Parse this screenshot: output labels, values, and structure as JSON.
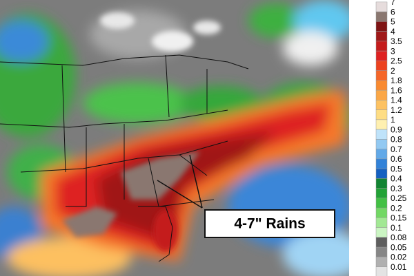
{
  "annotation": "4-7\" Rains",
  "legend": {
    "items": [
      {
        "label": "7",
        "color": "#e6dcdc"
      },
      {
        "label": "6",
        "color": "#8a7770"
      },
      {
        "label": "5",
        "color": "#7e1414"
      },
      {
        "label": "4",
        "color": "#a01818"
      },
      {
        "label": "3.5",
        "color": "#c41c1c"
      },
      {
        "label": "3",
        "color": "#de2222"
      },
      {
        "label": "2.5",
        "color": "#ec4220"
      },
      {
        "label": "2",
        "color": "#f56628"
      },
      {
        "label": "1.8",
        "color": "#f98a30"
      },
      {
        "label": "1.6",
        "color": "#fba746"
      },
      {
        "label": "1.4",
        "color": "#fdc262"
      },
      {
        "label": "1.2",
        "color": "#fedd84"
      },
      {
        "label": "1",
        "color": "#fff0b0"
      },
      {
        "label": "0.9",
        "color": "#bfe3fa"
      },
      {
        "label": "0.8",
        "color": "#92c9f2"
      },
      {
        "label": "0.7",
        "color": "#62a9e8"
      },
      {
        "label": "0.6",
        "color": "#3282d8"
      },
      {
        "label": "0.5",
        "color": "#1460c0"
      },
      {
        "label": "0.4",
        "color": "#128432"
      },
      {
        "label": "0.3",
        "color": "#22a236"
      },
      {
        "label": "0.25",
        "color": "#42c044"
      },
      {
        "label": "0.2",
        "color": "#72d864"
      },
      {
        "label": "0.15",
        "color": "#a2e894"
      },
      {
        "label": "0.1",
        "color": "#cbf5c3"
      },
      {
        "label": "0.08",
        "color": "#5e5e5e"
      },
      {
        "label": "0.05",
        "color": "#868686"
      },
      {
        "label": "0.02",
        "color": "#b0b0b0"
      },
      {
        "label": "0.01",
        "color": "#e4e4e4"
      }
    ]
  }
}
